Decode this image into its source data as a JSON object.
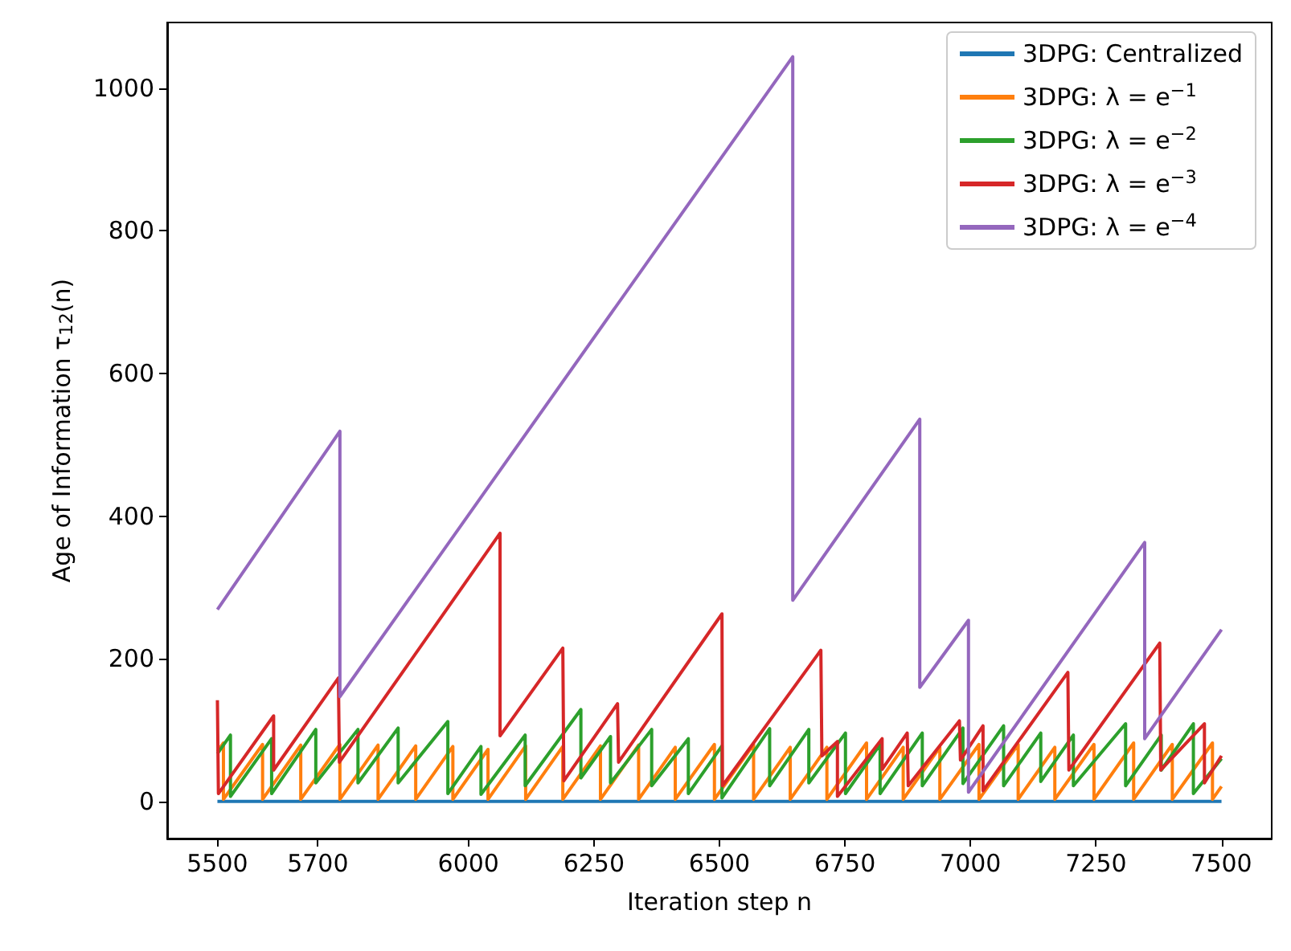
{
  "chart_data": {
    "type": "line",
    "xlabel": "Iteration step n",
    "ylabel": "Age of Information τ$_{12}$(n)",
    "xlim": [
      5400,
      7600
    ],
    "ylim": [
      -52,
      1092
    ],
    "xticks": [
      5500,
      5700,
      6000,
      6250,
      6500,
      6750,
      7000,
      7250,
      7500
    ],
    "yticks": [
      0,
      200,
      400,
      600,
      800,
      1000
    ],
    "grid": false,
    "legend": "top right",
    "series": [
      {
        "name": "3DPG: Centralized",
        "color": "#1f77b4",
        "x": [
          5500,
          7500
        ],
        "values": [
          0,
          0
        ]
      },
      {
        "name": "3DPG: λ = e$^{−1}$",
        "color": "#ff7f0e",
        "x": [
          5500,
          5512,
          5512,
          5590,
          5590,
          5666,
          5666,
          5744,
          5744,
          5820,
          5820,
          5895,
          5895,
          5969,
          5969,
          6039,
          6039,
          6114,
          6114,
          6188,
          6188,
          6263,
          6263,
          6339,
          6339,
          6412,
          6412,
          6490,
          6490,
          6568,
          6568,
          6641,
          6641,
          6714,
          6714,
          6793,
          6793,
          6866,
          6866,
          6939,
          6939,
          7017,
          7017,
          7095,
          7095,
          7168,
          7168,
          7246,
          7246,
          7325,
          7325,
          7402,
          7402,
          7482,
          7482,
          7500
        ],
        "values": [
          70,
          82,
          3,
          80,
          3,
          79,
          3,
          80,
          3,
          79,
          3,
          78,
          3,
          77,
          3,
          73,
          3,
          78,
          3,
          77,
          3,
          78,
          3,
          79,
          3,
          76,
          3,
          80,
          3,
          80,
          3,
          76,
          3,
          76,
          3,
          82,
          3,
          76,
          3,
          76,
          3,
          80,
          3,
          80,
          3,
          76,
          3,
          80,
          3,
          82,
          3,
          80,
          3,
          82,
          3,
          21
        ]
      },
      {
        "name": "3DPG: λ = e$^{−2}$",
        "color": "#2ca02c",
        "x": [
          5500,
          5526,
          5526,
          5608,
          5608,
          5696,
          5696,
          5780,
          5780,
          5860,
          5860,
          5959,
          5959,
          6025,
          6025,
          6113,
          6113,
          6224,
          6224,
          6283,
          6283,
          6365,
          6365,
          6438,
          6438,
          6505,
          6505,
          6600,
          6600,
          6678,
          6678,
          6751,
          6751,
          6820,
          6820,
          6904,
          6904,
          6985,
          6985,
          7066,
          7066,
          7140,
          7140,
          7205,
          7205,
          7309,
          7309,
          7380,
          7380,
          7444,
          7444,
          7500
        ],
        "values": [
          67,
          93,
          7,
          88,
          11,
          101,
          26,
          101,
          26,
          103,
          26,
          112,
          11,
          77,
          10,
          93,
          22,
          129,
          33,
          91,
          26,
          101,
          22,
          88,
          11,
          78,
          5,
          102,
          22,
          101,
          26,
          96,
          11,
          80,
          11,
          96,
          22,
          103,
          25,
          106,
          22,
          96,
          28,
          93,
          22,
          109,
          22,
          93,
          44,
          109,
          11,
          60
        ]
      },
      {
        "name": "3DPG: λ = e$^{−3}$",
        "color": "#d62728",
        "x": [
          5500,
          5502,
          5612,
          5612,
          5741,
          5743,
          6063,
          6063,
          6188,
          6190,
          6297,
          6299,
          6505,
          6506,
          6702,
          6704,
          6735,
          6735,
          6824,
          6824,
          6874,
          6876,
          6978,
          6980,
          7025,
          7025,
          7194,
          7196,
          7377,
          7379,
          7466,
          7466,
          7500
        ],
        "values": [
          142,
          11,
          120,
          44,
          173,
          55,
          376,
          92,
          215,
          29,
          137,
          55,
          263,
          22,
          212,
          64,
          84,
          7,
          88,
          45,
          96,
          22,
          113,
          58,
          106,
          15,
          181,
          44,
          222,
          44,
          109,
          26,
          64
        ]
      },
      {
        "name": "3DPG: λ = e$^{−4}$",
        "color": "#9467bd",
        "x": [
          5500,
          5744,
          5744,
          6646,
          6646,
          6899,
          6899,
          6996,
          6996,
          7347,
          7347,
          7500
        ],
        "values": [
          269,
          519,
          147,
          1044,
          282,
          536,
          160,
          254,
          13,
          363,
          88,
          241
        ]
      }
    ]
  }
}
